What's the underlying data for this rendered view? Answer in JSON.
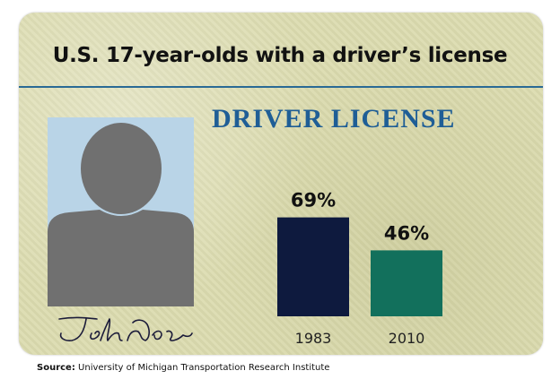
{
  "card": {
    "header_text": "DRIVER LICENSE",
    "colors": {
      "card": "#dcdcaf",
      "rule": "#2a6a95",
      "header": "#1f5e96",
      "photo_bg": "#b9d4e7",
      "silhouette": "#707070"
    }
  },
  "source": {
    "label": "Source:",
    "text": "University of Michigan Transportation Research Institute"
  },
  "chart_data": {
    "type": "bar",
    "title": "U.S. 17-year-olds with a driver’s license",
    "categories": [
      "1983",
      "2010"
    ],
    "values": [
      69,
      46
    ],
    "value_labels": [
      "69%",
      "46%"
    ],
    "colors": [
      "#0e1a3e",
      "#12705c"
    ],
    "xlabel": "",
    "ylabel": "",
    "ylim": [
      0,
      100
    ],
    "grid": false,
    "legend": "none"
  }
}
